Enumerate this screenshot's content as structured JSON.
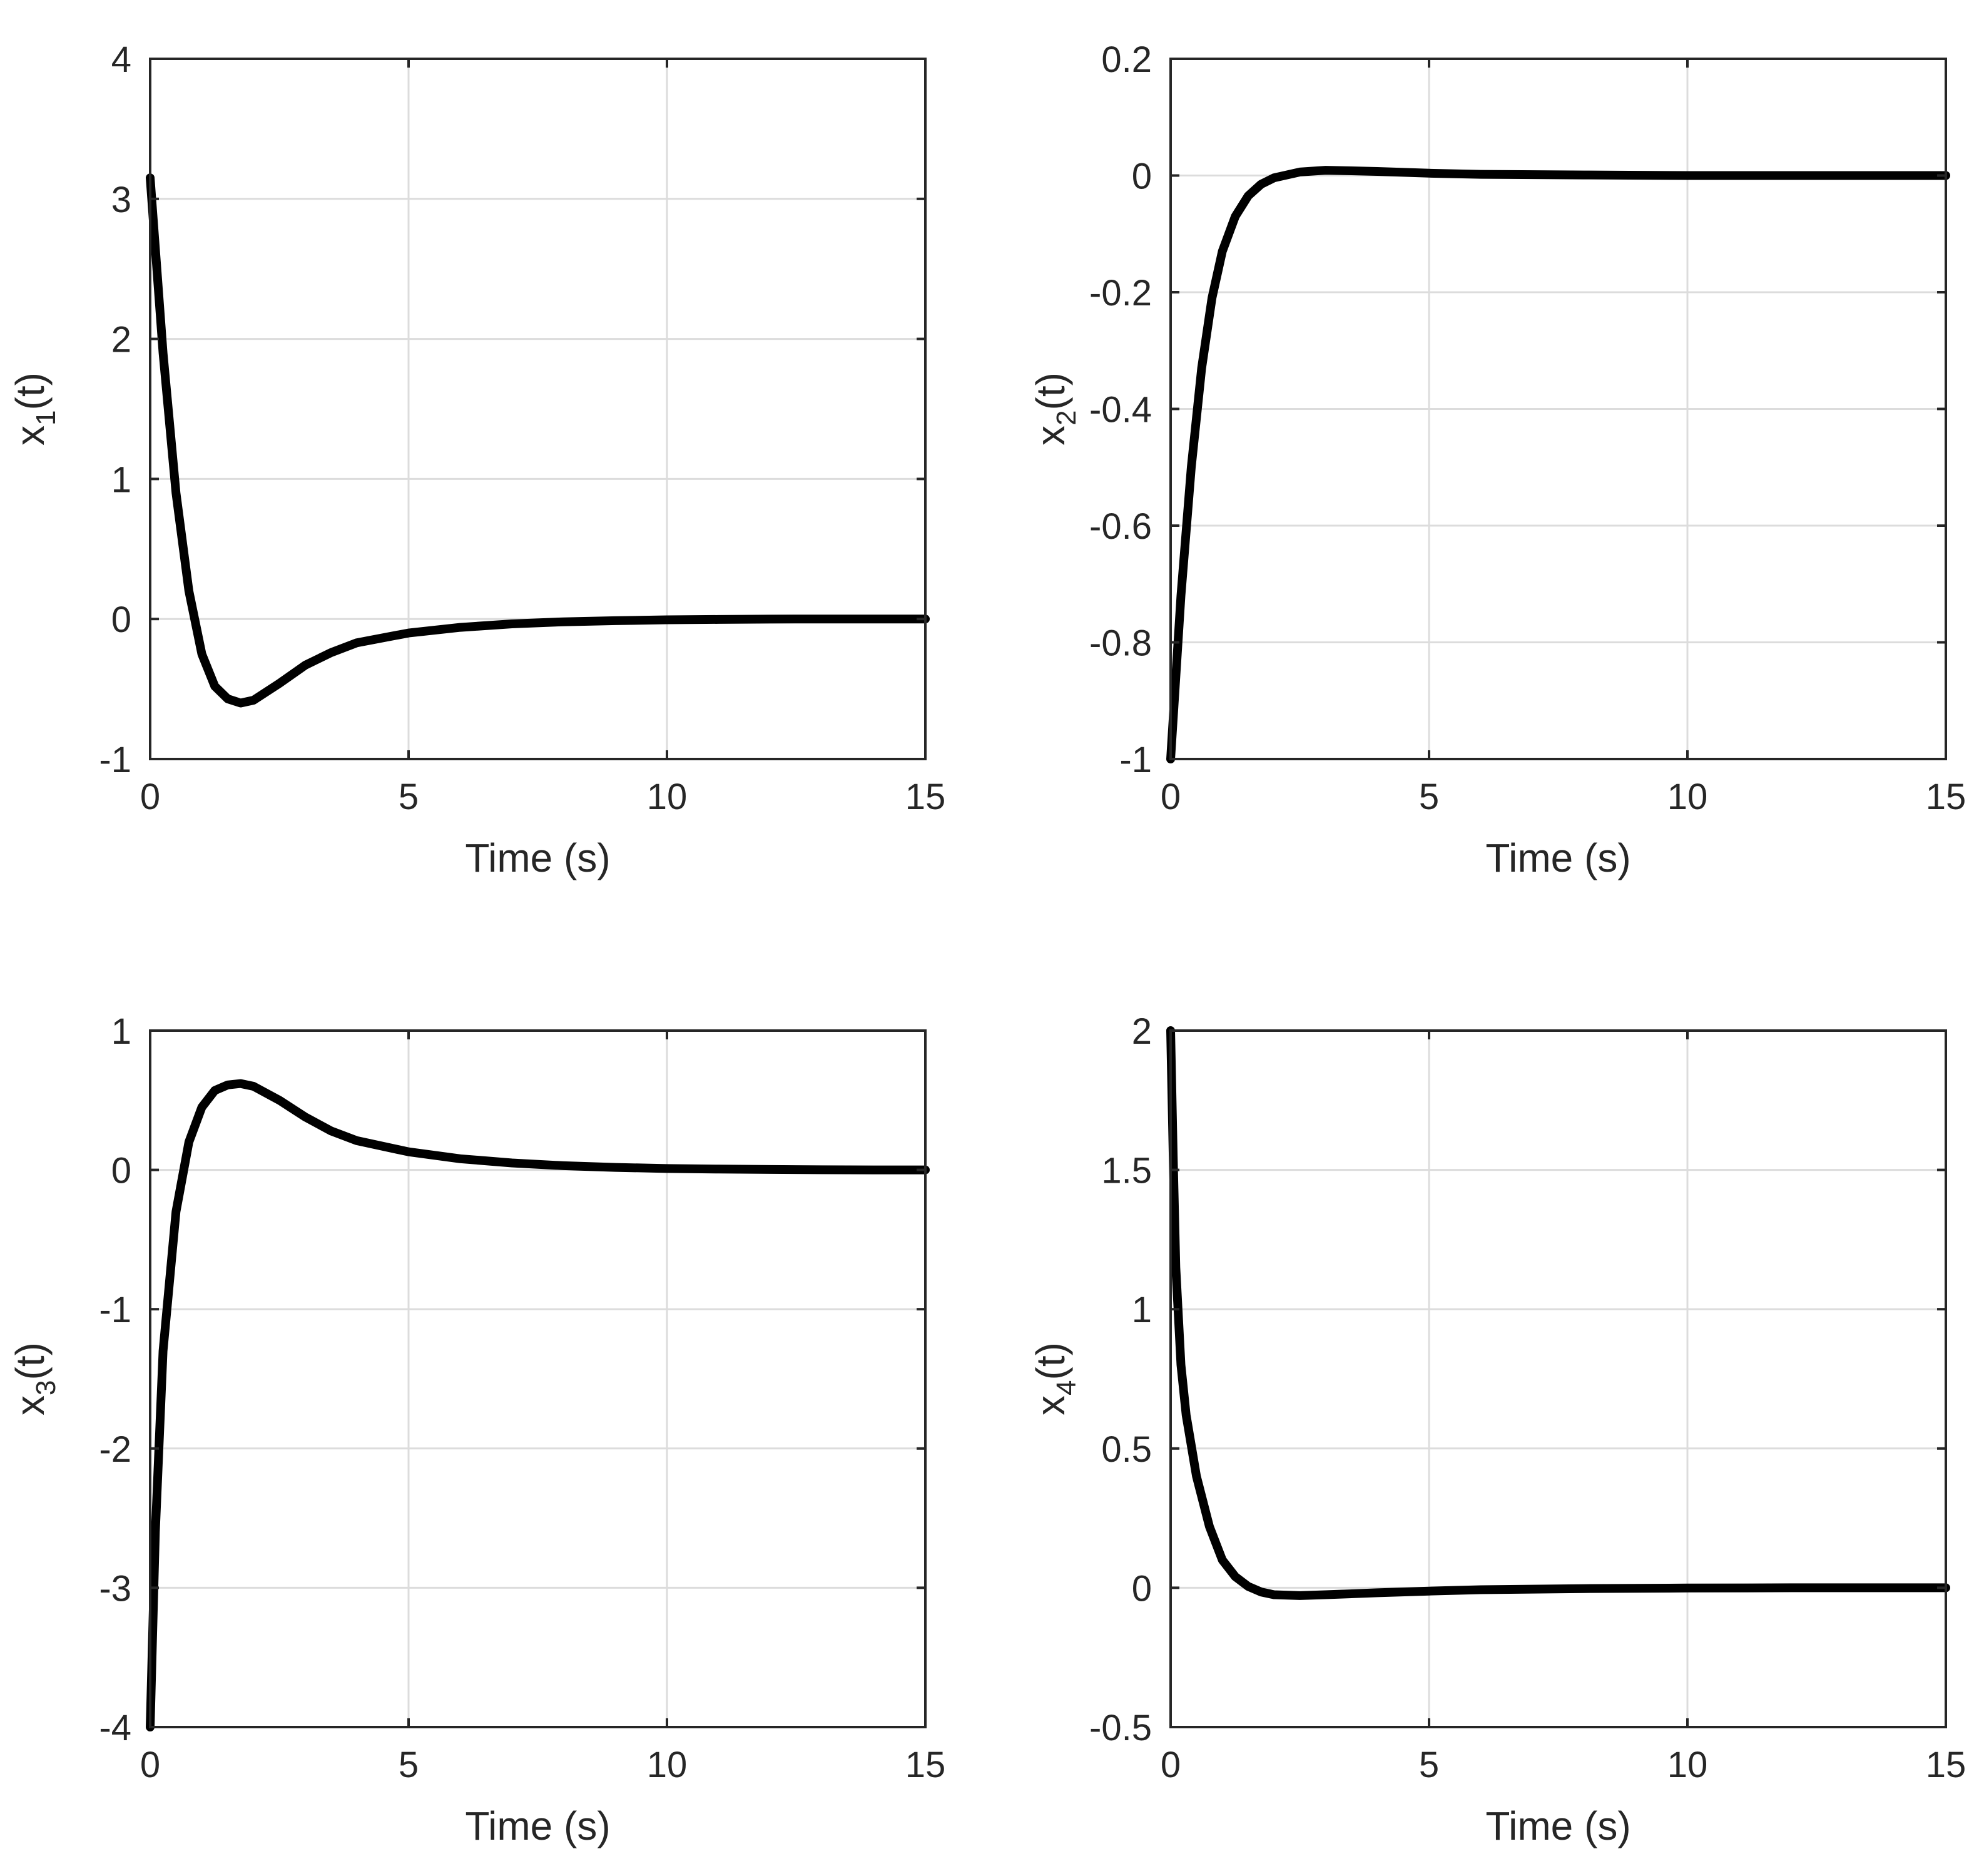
{
  "chart_data": [
    {
      "type": "line",
      "xlabel": "Time (s)",
      "ylabel": {
        "var": "x",
        "sub": "1",
        "arg": "(t)"
      },
      "xlim": [
        0,
        15
      ],
      "ylim": [
        -1,
        4
      ],
      "xticks": [
        0,
        5,
        10,
        15
      ],
      "xtick_labels": [
        "0",
        "5",
        "10",
        "15"
      ],
      "yticks": [
        -1,
        0,
        1,
        2,
        3,
        4
      ],
      "ytick_labels": [
        "-1",
        "0",
        "1",
        "2",
        "3",
        "4"
      ],
      "grid": true,
      "series": [
        {
          "name": "x1",
          "color": "#000000",
          "x": [
            0,
            0.25,
            0.5,
            0.75,
            1.0,
            1.25,
            1.5,
            1.75,
            2.0,
            2.5,
            3.0,
            3.5,
            4.0,
            5.0,
            6.0,
            7.0,
            8.0,
            9.0,
            10.0,
            11.0,
            12.0,
            13.0,
            14.0,
            15.0
          ],
          "y": [
            3.15,
            1.9,
            0.9,
            0.2,
            -0.25,
            -0.48,
            -0.57,
            -0.6,
            -0.58,
            -0.46,
            -0.33,
            -0.24,
            -0.17,
            -0.1,
            -0.06,
            -0.035,
            -0.02,
            -0.012,
            -0.006,
            -0.003,
            -0.001,
            0,
            0,
            0
          ]
        }
      ]
    },
    {
      "type": "line",
      "xlabel": "Time (s)",
      "ylabel": {
        "var": "x",
        "sub": "2",
        "arg": "(t)"
      },
      "xlim": [
        0,
        15
      ],
      "ylim": [
        -1,
        0.2
      ],
      "xticks": [
        0,
        5,
        10,
        15
      ],
      "xtick_labels": [
        "0",
        "5",
        "10",
        "15"
      ],
      "yticks": [
        -1,
        -0.8,
        -0.6,
        -0.4,
        -0.2,
        0,
        0.2
      ],
      "ytick_labels": [
        "-1",
        "-0.8",
        "-0.6",
        "-0.4",
        "-0.2",
        "0",
        "0.2"
      ],
      "grid": true,
      "series": [
        {
          "name": "x2",
          "color": "#000000",
          "x": [
            0,
            0.2,
            0.4,
            0.6,
            0.8,
            1.0,
            1.25,
            1.5,
            1.75,
            2.0,
            2.5,
            3.0,
            3.5,
            4.0,
            5.0,
            6.0,
            8.0,
            10.0,
            12.0,
            15.0
          ],
          "y": [
            -1.0,
            -0.72,
            -0.5,
            -0.33,
            -0.21,
            -0.13,
            -0.07,
            -0.035,
            -0.015,
            -0.004,
            0.006,
            0.009,
            0.008,
            0.007,
            0.004,
            0.002,
            0.001,
            0,
            0,
            0
          ]
        }
      ]
    },
    {
      "type": "line",
      "xlabel": "Time (s)",
      "ylabel": {
        "var": "x",
        "sub": "3",
        "arg": "(t)"
      },
      "xlim": [
        0,
        15
      ],
      "ylim": [
        -4,
        1
      ],
      "xticks": [
        0,
        5,
        10,
        15
      ],
      "xtick_labels": [
        "0",
        "5",
        "10",
        "15"
      ],
      "yticks": [
        -4,
        -3,
        -2,
        -1,
        0,
        1
      ],
      "ytick_labels": [
        "-4",
        "-3",
        "-2",
        "-1",
        "0",
        "1"
      ],
      "grid": true,
      "series": [
        {
          "name": "x3",
          "color": "#000000",
          "x": [
            0,
            0.1,
            0.25,
            0.5,
            0.75,
            1.0,
            1.25,
            1.5,
            1.75,
            2.0,
            2.5,
            3.0,
            3.5,
            4.0,
            5.0,
            6.0,
            7.0,
            8.0,
            9.0,
            10.0,
            11.0,
            12.0,
            13.0,
            14.0,
            15.0
          ],
          "y": [
            -4.0,
            -2.6,
            -1.3,
            -0.3,
            0.2,
            0.45,
            0.57,
            0.61,
            0.62,
            0.6,
            0.5,
            0.38,
            0.28,
            0.21,
            0.13,
            0.08,
            0.05,
            0.03,
            0.018,
            0.01,
            0.006,
            0.003,
            0.001,
            0,
            0
          ]
        }
      ]
    },
    {
      "type": "line",
      "xlabel": "Time (s)",
      "ylabel": {
        "var": "x",
        "sub": "4",
        "arg": "(t)"
      },
      "xlim": [
        0,
        15
      ],
      "ylim": [
        -0.5,
        2
      ],
      "xticks": [
        0,
        5,
        10,
        15
      ],
      "xtick_labels": [
        "0",
        "5",
        "10",
        "15"
      ],
      "yticks": [
        -0.5,
        0,
        0.5,
        1,
        1.5,
        2
      ],
      "ytick_labels": [
        "-0.5",
        "0",
        "0.5",
        "1",
        "1.5",
        "2"
      ],
      "grid": true,
      "series": [
        {
          "name": "x4",
          "color": "#000000",
          "x": [
            0,
            0.05,
            0.1,
            0.2,
            0.3,
            0.5,
            0.75,
            1.0,
            1.25,
            1.5,
            1.75,
            2.0,
            2.5,
            3.0,
            4.0,
            5.0,
            6.0,
            8.0,
            10.0,
            12.0,
            15.0
          ],
          "y": [
            2.0,
            1.55,
            1.15,
            0.8,
            0.62,
            0.4,
            0.22,
            0.1,
            0.04,
            0.005,
            -0.015,
            -0.025,
            -0.028,
            -0.025,
            -0.018,
            -0.012,
            -0.007,
            -0.003,
            -0.001,
            0,
            0
          ]
        }
      ]
    }
  ]
}
